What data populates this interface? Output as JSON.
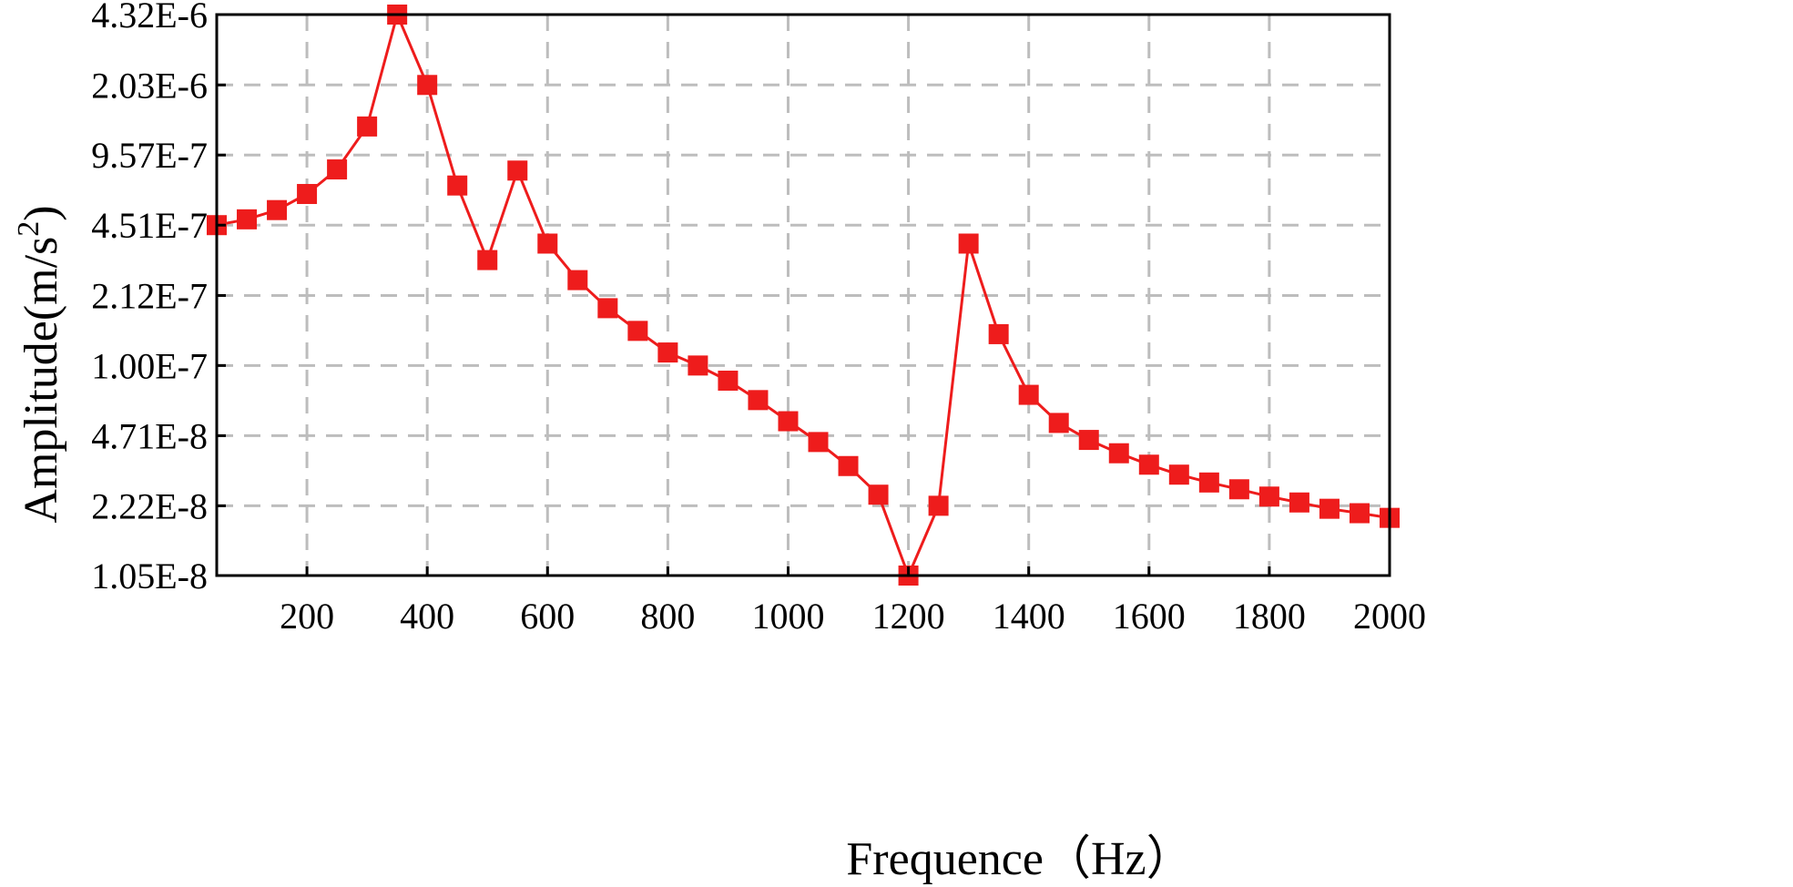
{
  "chart_data": {
    "type": "line",
    "xlabel": "Frequence（Hz）",
    "ylabel_main": "Amplitude(m/s",
    "ylabel_sup": "2",
    "ylabel_close": ")",
    "y_scale": "log",
    "xlim": [
      50,
      2000
    ],
    "ylim": [
      1.05e-08,
      4.32e-06
    ],
    "x_ticks": [
      200,
      400,
      600,
      800,
      1000,
      1200,
      1400,
      1600,
      1800,
      2000
    ],
    "y_ticks": [
      {
        "value": 1.05e-08,
        "label": "1.05E-8"
      },
      {
        "value": 2.22e-08,
        "label": "2.22E-8"
      },
      {
        "value": 4.71e-08,
        "label": "4.71E-8"
      },
      {
        "value": 1e-07,
        "label": "1.00E-7"
      },
      {
        "value": 2.12e-07,
        "label": "2.12E-7"
      },
      {
        "value": 4.51e-07,
        "label": "4.51E-7"
      },
      {
        "value": 9.57e-07,
        "label": "9.57E-7"
      },
      {
        "value": 2.03e-06,
        "label": "2.03E-6"
      },
      {
        "value": 4.32e-06,
        "label": "4.32E-6"
      }
    ],
    "grid": true,
    "series": [
      {
        "color": "#ee1c1c",
        "marker": "square",
        "x": [
          50,
          100,
          150,
          200,
          250,
          300,
          350,
          400,
          450,
          500,
          550,
          600,
          650,
          700,
          750,
          800,
          850,
          900,
          950,
          1000,
          1050,
          1100,
          1150,
          1200,
          1250,
          1300,
          1350,
          1400,
          1450,
          1500,
          1550,
          1600,
          1650,
          1700,
          1750,
          1800,
          1850,
          1900,
          1950,
          2000
        ],
        "y": [
          4.51e-07,
          4.8e-07,
          5.3e-07,
          6.3e-07,
          8.2e-07,
          1.3e-06,
          4.32e-06,
          2.03e-06,
          6.9e-07,
          3.1e-07,
          8.1e-07,
          3.7e-07,
          2.5e-07,
          1.85e-07,
          1.45e-07,
          1.15e-07,
          1e-07,
          8.5e-08,
          6.9e-08,
          5.5e-08,
          4.4e-08,
          3.4e-08,
          2.5e-08,
          1.05e-08,
          2.22e-08,
          3.7e-07,
          1.4e-07,
          7.3e-08,
          5.4e-08,
          4.5e-08,
          3.9e-08,
          3.45e-08,
          3.1e-08,
          2.85e-08,
          2.65e-08,
          2.45e-08,
          2.3e-08,
          2.15e-08,
          2.05e-08,
          1.95e-08
        ]
      }
    ]
  }
}
